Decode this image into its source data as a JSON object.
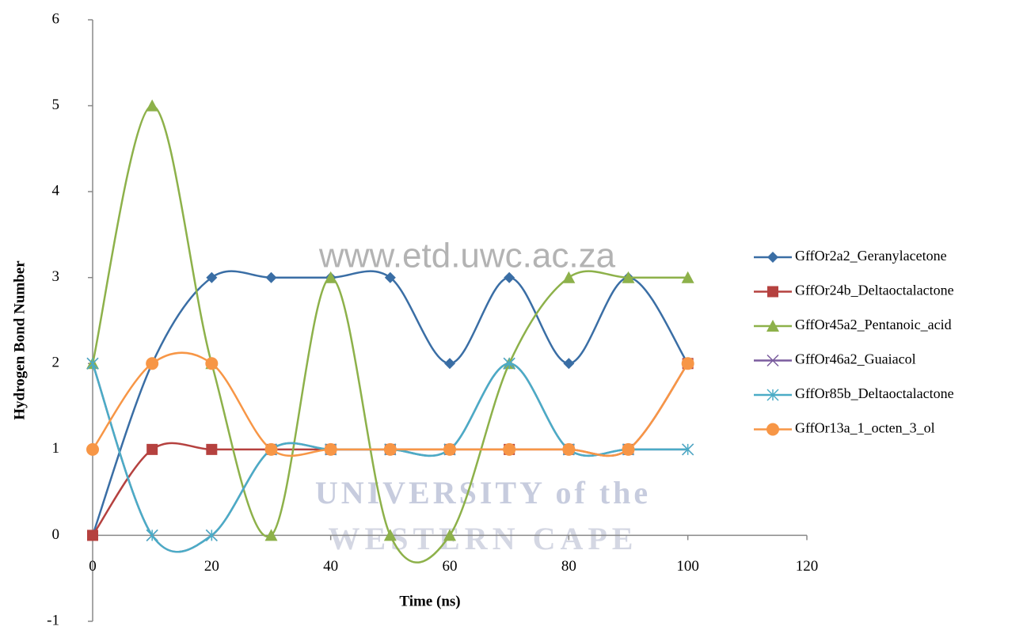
{
  "chart_data": {
    "type": "line",
    "smooth": true,
    "x_label": "Time (ns)",
    "y_label": "Hydrogen Bond Number",
    "x": [
      0,
      10,
      20,
      30,
      40,
      50,
      60,
      70,
      80,
      90,
      100
    ],
    "series": [
      {
        "name": "GffOr2a2_Geranylacetone",
        "color": "#3a6ea5",
        "marker": "diamond",
        "values": [
          0,
          2,
          3,
          3,
          3,
          3,
          2,
          3,
          2,
          3,
          2
        ]
      },
      {
        "name": "GffOr24b_Deltaoctalactone",
        "color": "#b5413f",
        "marker": "square",
        "values": [
          0,
          1,
          1,
          1,
          1,
          1,
          1,
          1,
          1,
          1,
          2
        ]
      },
      {
        "name": "GffOr45a2_Pentanoic_acid",
        "color": "#8db14a",
        "marker": "triangle",
        "values": [
          2,
          5,
          2,
          0,
          3,
          0,
          0,
          2,
          3,
          3,
          3
        ]
      },
      {
        "name": "GffOr46a2_Guaiacol",
        "color": "#7a5c9e",
        "marker": "x",
        "values": [
          2,
          0,
          0,
          1,
          1,
          1,
          1,
          2,
          1,
          1,
          1
        ]
      },
      {
        "name": "GffOr85b_Deltaoctalactone",
        "color": "#4bacc6",
        "marker": "star",
        "values": [
          2,
          0,
          0,
          1,
          1,
          1,
          1,
          2,
          1,
          1,
          1
        ]
      },
      {
        "name": "GffOr13a_1_octen_3_ol",
        "color": "#f79646",
        "marker": "circle",
        "values": [
          1,
          2,
          2,
          1,
          1,
          1,
          1,
          1,
          1,
          1,
          2
        ]
      }
    ],
    "xlim": [
      0,
      120
    ],
    "xticks": [
      0,
      20,
      40,
      60,
      80,
      100,
      120
    ],
    "ylim": [
      -1,
      6
    ],
    "yticks": [
      -1,
      0,
      1,
      2,
      3,
      4,
      5,
      6
    ],
    "legend": "right",
    "annotations": [
      "www.etd.uwc.ac.za",
      "UNIVERSITY of the",
      "WESTERN CAPE"
    ]
  }
}
